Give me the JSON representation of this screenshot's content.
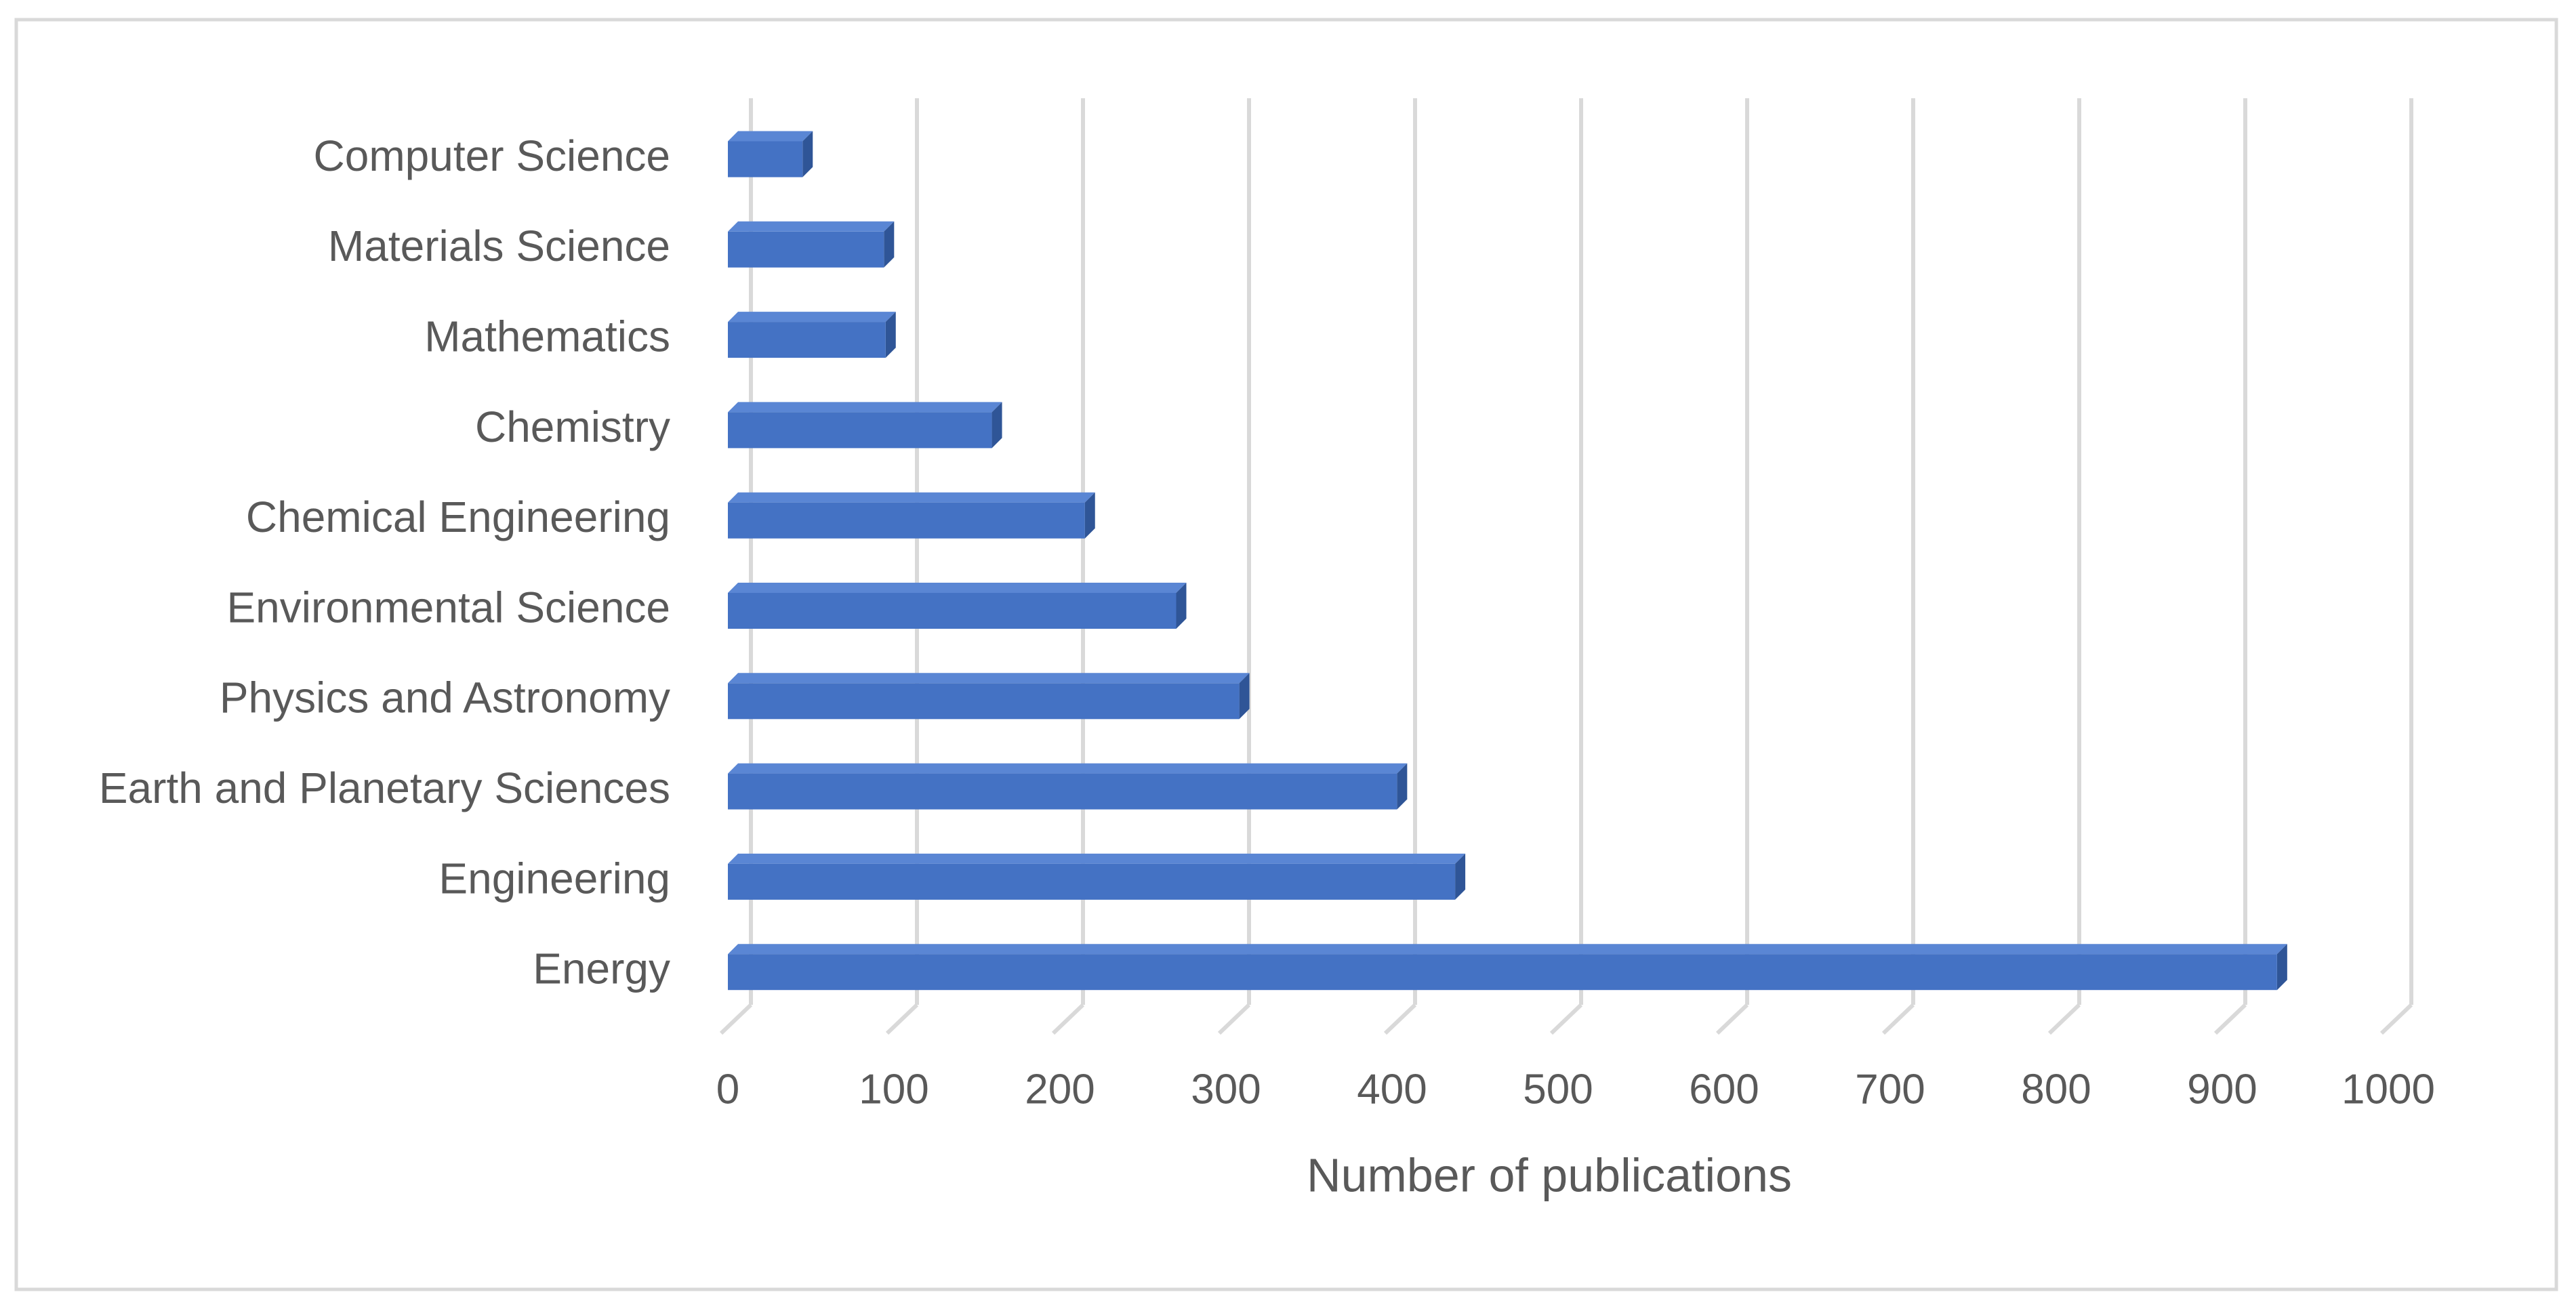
{
  "chart_data": {
    "type": "bar3d",
    "orientation": "horizontal",
    "categories": [
      "Computer Science",
      "Materials Science",
      "Mathematics",
      "Chemistry",
      "Chemical Engineering",
      "Environmental Science",
      "Physics and Astronomy",
      "Earth and Planetary Sciences",
      "Engineering",
      "Energy"
    ],
    "values": [
      45,
      94,
      95,
      159,
      215,
      270,
      308,
      403,
      438,
      933
    ],
    "color": "#4472c4",
    "x_label": "Number of publications",
    "xlim": [
      0,
      1000
    ],
    "xticks": [
      0,
      100,
      200,
      300,
      400,
      500,
      600,
      700,
      800,
      900,
      1000
    ],
    "grid": true
  }
}
